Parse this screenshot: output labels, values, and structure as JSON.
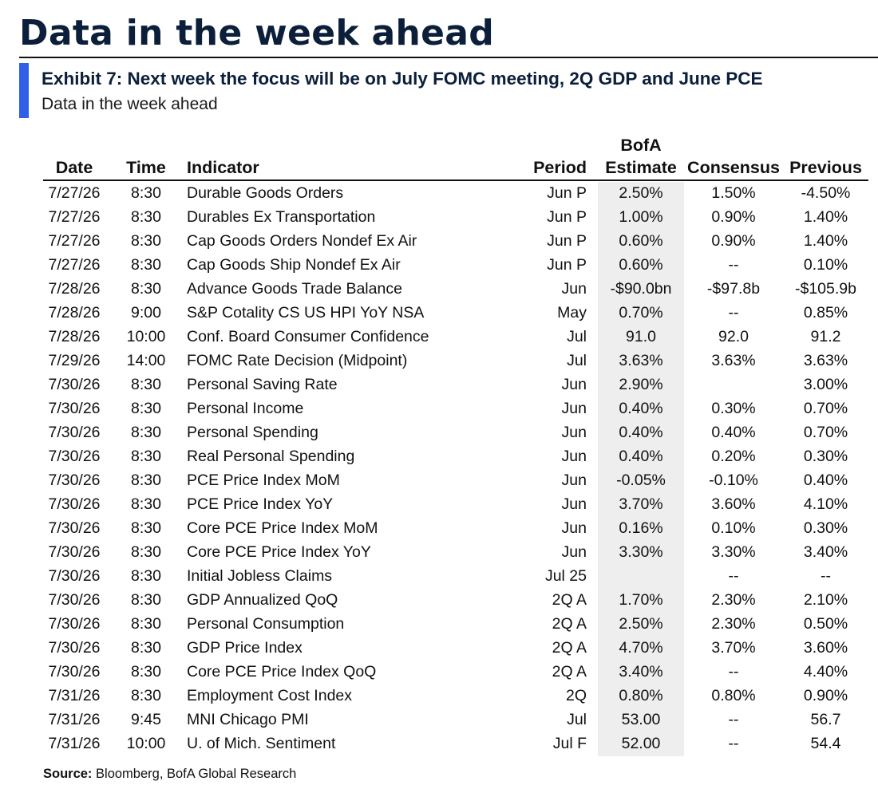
{
  "header": {
    "title": "Data in the week ahead",
    "exhibit_title": "Exhibit 7: Next week the focus will be on July FOMC meeting, 2Q GDP and June PCE",
    "subtitle": "Data in the week ahead",
    "accent_color": "#2f5ee8",
    "title_color": "#0b1f3a"
  },
  "table": {
    "columns": {
      "date": "Date",
      "time": "Time",
      "indicator": "Indicator",
      "period": "Period",
      "estimate_line1": "BofA",
      "estimate_line2": "Estimate",
      "consensus": "Consensus",
      "previous": "Previous"
    },
    "rows": [
      {
        "date": "7/27/26",
        "time": "8:30",
        "indicator": "Durable Goods Orders",
        "period": "Jun P",
        "estimate": "2.50%",
        "consensus": "1.50%",
        "previous": "-4.50%"
      },
      {
        "date": "7/27/26",
        "time": "8:30",
        "indicator": "Durables Ex Transportation",
        "period": "Jun P",
        "estimate": "1.00%",
        "consensus": "0.90%",
        "previous": "1.40%"
      },
      {
        "date": "7/27/26",
        "time": "8:30",
        "indicator": "Cap Goods Orders Nondef Ex Air",
        "period": "Jun P",
        "estimate": "0.60%",
        "consensus": "0.90%",
        "previous": "1.40%"
      },
      {
        "date": "7/27/26",
        "time": "8:30",
        "indicator": "Cap Goods Ship Nondef Ex Air",
        "period": "Jun P",
        "estimate": "0.60%",
        "consensus": "--",
        "previous": "0.10%"
      },
      {
        "date": "7/28/26",
        "time": "8:30",
        "indicator": "Advance Goods Trade Balance",
        "period": "Jun",
        "estimate": "-$90.0bn",
        "consensus": "-$97.8b",
        "previous": "-$105.9b"
      },
      {
        "date": "7/28/26",
        "time": "9:00",
        "indicator": "S&P Cotality CS US HPI YoY NSA",
        "period": "May",
        "estimate": "0.70%",
        "consensus": "--",
        "previous": "0.85%"
      },
      {
        "date": "7/28/26",
        "time": "10:00",
        "indicator": "Conf. Board Consumer Confidence",
        "period": "Jul",
        "estimate": "91.0",
        "consensus": "92.0",
        "previous": "91.2"
      },
      {
        "date": "7/29/26",
        "time": "14:00",
        "indicator": "FOMC Rate Decision (Midpoint)",
        "period": "Jul",
        "estimate": "3.63%",
        "consensus": "3.63%",
        "previous": "3.63%"
      },
      {
        "date": "7/30/26",
        "time": "8:30",
        "indicator": "Personal Saving Rate",
        "period": "Jun",
        "estimate": "2.90%",
        "consensus": "",
        "previous": "3.00%"
      },
      {
        "date": "7/30/26",
        "time": "8:30",
        "indicator": "Personal Income",
        "period": "Jun",
        "estimate": "0.40%",
        "consensus": "0.30%",
        "previous": "0.70%"
      },
      {
        "date": "7/30/26",
        "time": "8:30",
        "indicator": "Personal Spending",
        "period": "Jun",
        "estimate": "0.40%",
        "consensus": "0.40%",
        "previous": "0.70%"
      },
      {
        "date": "7/30/26",
        "time": "8:30",
        "indicator": "Real Personal Spending",
        "period": "Jun",
        "estimate": "0.40%",
        "consensus": "0.20%",
        "previous": "0.30%"
      },
      {
        "date": "7/30/26",
        "time": "8:30",
        "indicator": "PCE Price Index MoM",
        "period": "Jun",
        "estimate": "-0.05%",
        "consensus": "-0.10%",
        "previous": "0.40%"
      },
      {
        "date": "7/30/26",
        "time": "8:30",
        "indicator": "PCE Price Index YoY",
        "period": "Jun",
        "estimate": "3.70%",
        "consensus": "3.60%",
        "previous": "4.10%"
      },
      {
        "date": "7/30/26",
        "time": "8:30",
        "indicator": "Core PCE Price Index MoM",
        "period": "Jun",
        "estimate": "0.16%",
        "consensus": "0.10%",
        "previous": "0.30%"
      },
      {
        "date": "7/30/26",
        "time": "8:30",
        "indicator": "Core PCE Price Index YoY",
        "period": "Jun",
        "estimate": "3.30%",
        "consensus": "3.30%",
        "previous": "3.40%"
      },
      {
        "date": "7/30/26",
        "time": "8:30",
        "indicator": "Initial Jobless Claims",
        "period": "Jul 25",
        "estimate": "",
        "consensus": "--",
        "previous": "--"
      },
      {
        "date": "7/30/26",
        "time": "8:30",
        "indicator": "GDP Annualized QoQ",
        "period": "2Q A",
        "estimate": "1.70%",
        "consensus": "2.30%",
        "previous": "2.10%"
      },
      {
        "date": "7/30/26",
        "time": "8:30",
        "indicator": "Personal Consumption",
        "period": "2Q A",
        "estimate": "2.50%",
        "consensus": "2.30%",
        "previous": "0.50%"
      },
      {
        "date": "7/30/26",
        "time": "8:30",
        "indicator": "GDP Price Index",
        "period": "2Q A",
        "estimate": "4.70%",
        "consensus": "3.70%",
        "previous": "3.60%"
      },
      {
        "date": "7/30/26",
        "time": "8:30",
        "indicator": "Core PCE Price Index QoQ",
        "period": "2Q A",
        "estimate": "3.40%",
        "consensus": "--",
        "previous": "4.40%"
      },
      {
        "date": "7/31/26",
        "time": "8:30",
        "indicator": "Employment Cost Index",
        "period": "2Q",
        "estimate": "0.80%",
        "consensus": "0.80%",
        "previous": "0.90%"
      },
      {
        "date": "7/31/26",
        "time": "9:45",
        "indicator": "MNI Chicago PMI",
        "period": "Jul",
        "estimate": "53.00",
        "consensus": "--",
        "previous": "56.7"
      },
      {
        "date": "7/31/26",
        "time": "10:00",
        "indicator": "U. of Mich. Sentiment",
        "period": "Jul F",
        "estimate": "52.00",
        "consensus": "--",
        "previous": "54.4"
      }
    ],
    "estimate_shade_color": "#eeeeee"
  },
  "footer": {
    "source_label": "Source:",
    "source_text": " Bloomberg, BofA Global Research"
  }
}
